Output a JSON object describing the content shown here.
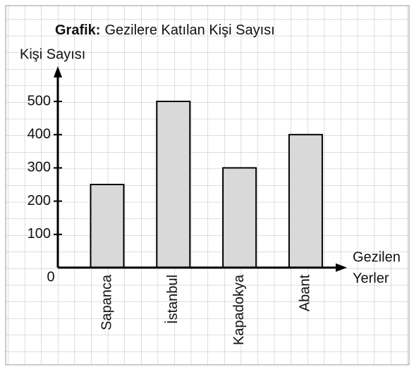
{
  "chart_data": {
    "type": "bar",
    "title_label": "Grafik:",
    "title": "Gezilere Katılan Kişi Sayısı",
    "ylabel": "Kişi Sayısı",
    "xlabel": [
      "Gezilen",
      "Yerler"
    ],
    "categories": [
      "Sapanca",
      "İstanbul",
      "Kapadokya",
      "Abant"
    ],
    "values": [
      250,
      500,
      300,
      400
    ],
    "color": "#d9d9d9",
    "ylim": [
      0,
      500
    ],
    "yticks": [
      0,
      100,
      200,
      300,
      400,
      500
    ]
  }
}
